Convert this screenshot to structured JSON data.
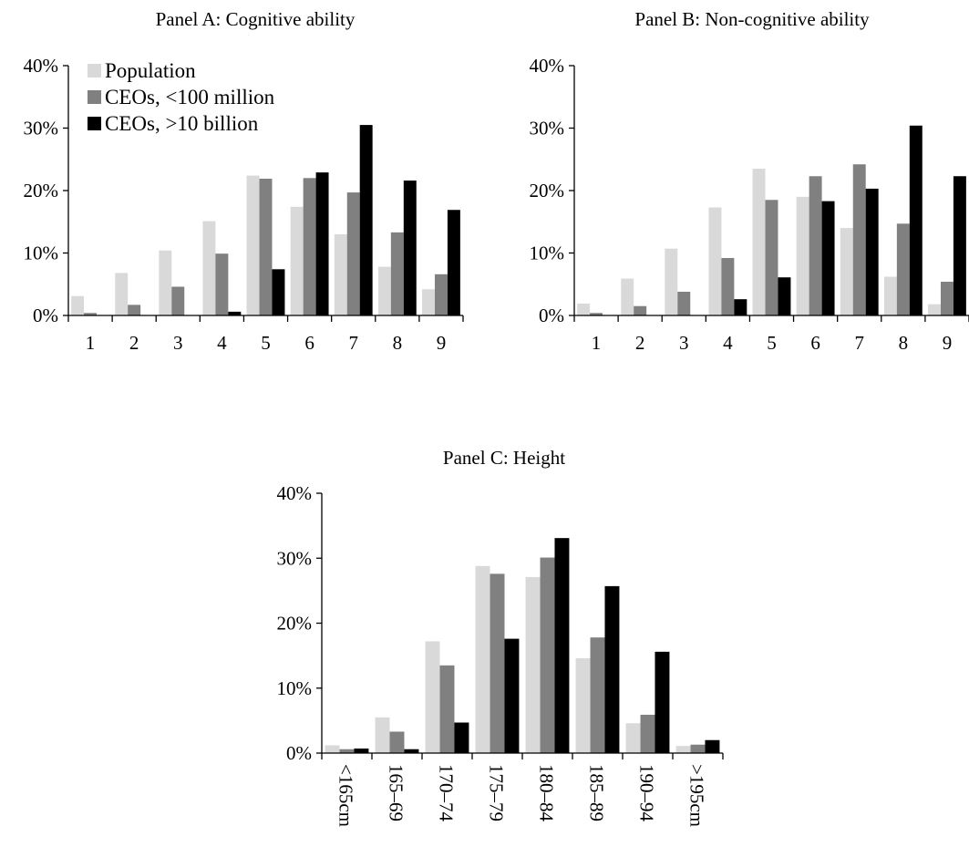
{
  "colors": {
    "population": "#d9d9d9",
    "ceo_small": "#808080",
    "ceo_large": "#000000"
  },
  "chart_data": [
    {
      "type": "bar",
      "title": "Panel A: Cognitive ability",
      "categories": [
        "1",
        "2",
        "3",
        "4",
        "5",
        "6",
        "7",
        "8",
        "9"
      ],
      "y_ticks": [
        "0%",
        "10%",
        "20%",
        "30%",
        "40%"
      ],
      "ylim": [
        0,
        40
      ],
      "legend": "top-left",
      "series": [
        {
          "name": "Population",
          "color": "#d9d9d9",
          "values": [
            3.1,
            6.8,
            10.4,
            15.1,
            22.4,
            17.4,
            13.0,
            7.8,
            4.2
          ]
        },
        {
          "name": "CEOs, <100 million",
          "color": "#808080",
          "values": [
            0.4,
            1.7,
            4.6,
            9.9,
            21.9,
            22.0,
            19.7,
            13.3,
            6.6
          ]
        },
        {
          "name": "CEOs, >10 billion",
          "color": "#000000",
          "values": [
            0,
            0,
            0,
            0.6,
            7.4,
            22.9,
            30.5,
            21.6,
            16.9
          ]
        }
      ]
    },
    {
      "type": "bar",
      "title": "Panel B: Non-cognitive ability",
      "categories": [
        "1",
        "2",
        "3",
        "4",
        "5",
        "6",
        "7",
        "8",
        "9"
      ],
      "y_ticks": [
        "0%",
        "10%",
        "20%",
        "30%",
        "40%"
      ],
      "ylim": [
        0,
        40
      ],
      "series": [
        {
          "color": "#d9d9d9",
          "values": [
            1.9,
            5.9,
            10.7,
            17.3,
            23.5,
            19.0,
            14.0,
            6.2,
            1.8
          ]
        },
        {
          "color": "#808080",
          "values": [
            0.4,
            1.5,
            3.8,
            9.2,
            18.5,
            22.3,
            24.2,
            14.7,
            5.4
          ]
        },
        {
          "color": "#000000",
          "values": [
            0,
            0,
            0,
            2.6,
            6.1,
            18.3,
            20.3,
            30.4,
            22.3
          ]
        }
      ]
    },
    {
      "type": "bar",
      "title": "Panel C: Height",
      "categories": [
        "<165cm",
        "165–69",
        "170–74",
        "175–79",
        "180–84",
        "185–89",
        "190–94",
        ">195cm"
      ],
      "y_ticks": [
        "0%",
        "10%",
        "20%",
        "30%",
        "40%"
      ],
      "ylim": [
        0,
        40
      ],
      "series": [
        {
          "color": "#d9d9d9",
          "values": [
            1.2,
            5.5,
            17.2,
            28.8,
            27.1,
            14.6,
            4.6,
            1.1
          ]
        },
        {
          "color": "#808080",
          "values": [
            0.6,
            3.3,
            13.5,
            27.6,
            30.1,
            17.8,
            5.9,
            1.3
          ]
        },
        {
          "color": "#000000",
          "values": [
            0.7,
            0.6,
            4.7,
            17.6,
            33.1,
            25.7,
            15.6,
            2.0
          ]
        }
      ]
    }
  ]
}
